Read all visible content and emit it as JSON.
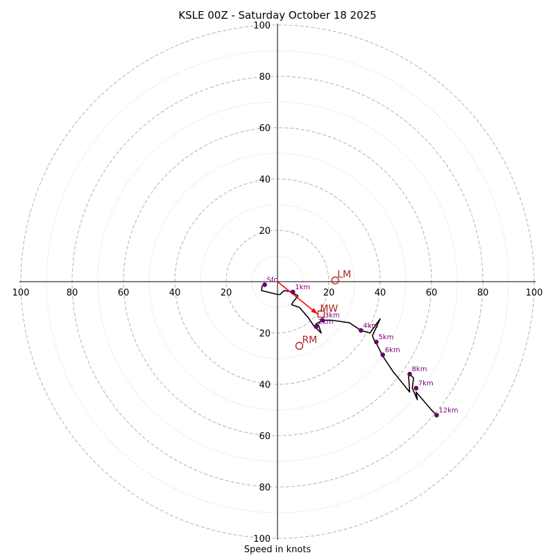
{
  "chart_data": {
    "type": "hodograph",
    "title": "KSLE 00Z - Saturday October 18 2025",
    "xlabel": "Speed in knots",
    "range": 100,
    "ring_major": [
      20,
      40,
      60,
      80,
      100
    ],
    "ring_minor": [
      10,
      30,
      50,
      70,
      90
    ],
    "tick_values": [
      20,
      40,
      60,
      80,
      100
    ],
    "tick_labels": {
      "left": [
        "20",
        "40",
        "60",
        "80",
        "100"
      ],
      "right": [
        "20",
        "40",
        "60",
        "80",
        "100"
      ],
      "up": [
        "20",
        "40",
        "60",
        "80",
        "100"
      ],
      "down": [
        "20",
        "40",
        "60",
        "80",
        "100"
      ]
    },
    "trace": [
      [
        -6,
        -1.5
      ],
      [
        -6.2,
        -3.5
      ],
      [
        0,
        -5
      ],
      [
        1,
        -5
      ],
      [
        2.5,
        -3.5
      ],
      [
        5,
        -3.8
      ],
      [
        8,
        -5.5
      ],
      [
        6,
        -8
      ],
      [
        5.5,
        -9
      ],
      [
        8.5,
        -10
      ],
      [
        12,
        -14
      ],
      [
        14,
        -17
      ],
      [
        16,
        -19
      ],
      [
        17,
        -20
      ],
      [
        16,
        -17
      ],
      [
        15,
        -16.5
      ],
      [
        17.5,
        -15
      ],
      [
        21,
        -15
      ],
      [
        28,
        -16
      ],
      [
        32.5,
        -19
      ],
      [
        36,
        -20
      ],
      [
        40,
        -14.5
      ],
      [
        37,
        -21
      ],
      [
        37.5,
        -22.5
      ],
      [
        38.5,
        -24
      ],
      [
        41,
        -29
      ],
      [
        45,
        -35
      ],
      [
        51.5,
        -43
      ],
      [
        51,
        -35.5
      ],
      [
        53,
        -37.5
      ],
      [
        52.5,
        -41.5
      ],
      [
        54.5,
        -46
      ],
      [
        54,
        -43
      ],
      [
        60,
        -50
      ],
      [
        62,
        -52
      ]
    ],
    "height_markers": [
      {
        "label": "Sfc",
        "u": -5,
        "v": -1.2
      },
      {
        "label": "1km",
        "u": 6,
        "v": -4
      },
      {
        "label": "2km",
        "u": 15,
        "v": -17.5
      },
      {
        "label": "3km",
        "u": 17.5,
        "v": -15
      },
      {
        "label": "4km",
        "u": 32.5,
        "v": -19
      },
      {
        "label": "5km",
        "u": 38.5,
        "v": -23.5
      },
      {
        "label": "6km",
        "u": 41,
        "v": -28.5
      },
      {
        "label": "7km",
        "u": 54,
        "v": -41.5
      },
      {
        "label": "8km",
        "u": 51.5,
        "v": -36
      },
      {
        "label": "12km",
        "u": 62,
        "v": -52
      }
    ],
    "storm_motion": {
      "LM": {
        "label": "LM",
        "u": 22.5,
        "v": 0.5
      },
      "RM": {
        "label": "RM",
        "u": 8.5,
        "v": -25
      },
      "MW": {
        "label": "MW",
        "u": 15.5,
        "v": -12.5
      }
    },
    "colors": {
      "trace": "#000000",
      "marker": "#6a006a",
      "marker_label": "#7a007a",
      "storm": "#b22222",
      "arrow": "#ff0000",
      "ring": "#b0b0b0",
      "axis": "#000000"
    }
  }
}
